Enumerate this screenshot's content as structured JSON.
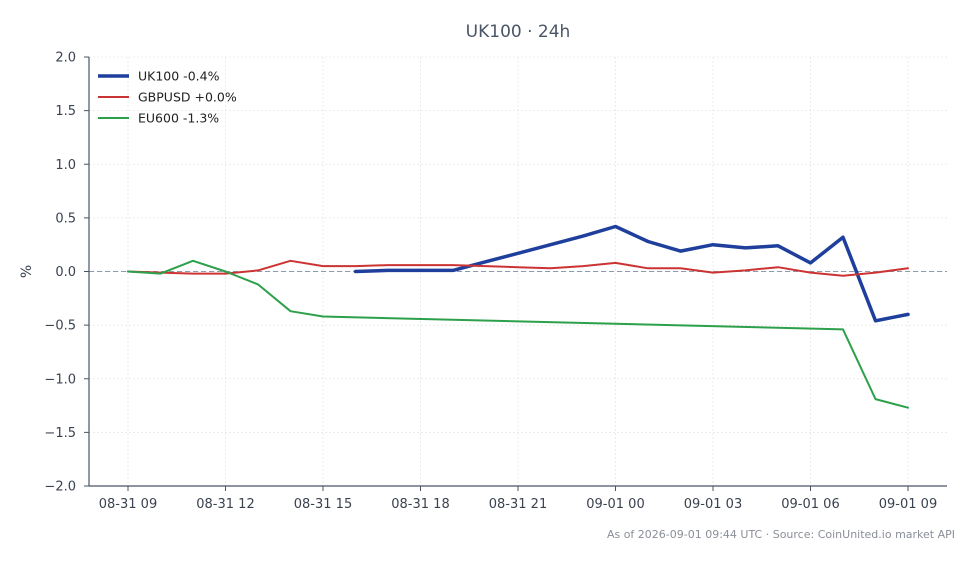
{
  "chart_data": {
    "type": "line",
    "title": "UK100 · 24h",
    "ylabel": "%",
    "xlabel": "",
    "ylim": [
      -2.0,
      2.0
    ],
    "yticks": [
      "2.0",
      "1.5",
      "1.0",
      "0.5",
      "0.0",
      "−0.5",
      "−1.0",
      "−1.5",
      "−2.0"
    ],
    "ytick_values": [
      2.0,
      1.5,
      1.0,
      0.5,
      0.0,
      -0.5,
      -1.0,
      -1.5,
      -2.0
    ],
    "xticks": [
      "08-31 09",
      "08-31 12",
      "08-31 15",
      "08-31 18",
      "08-31 21",
      "09-01 00",
      "09-01 03",
      "09-01 06",
      "09-01 09"
    ],
    "xtick_hours": [
      0,
      3,
      6,
      9,
      12,
      15,
      18,
      21,
      24
    ],
    "x_range_hours": [
      -1.2,
      25.2
    ],
    "grid": true,
    "zero_line": true,
    "legend_position": "top-left",
    "series": [
      {
        "name": "UK100 -0.4%",
        "color": "#1f3f9c",
        "hours": [
          7,
          8,
          9,
          10,
          11,
          12,
          13,
          14,
          15,
          16,
          17,
          18,
          19,
          20,
          21,
          22,
          23,
          24
        ],
        "values": [
          0.0,
          0.01,
          0.01,
          0.01,
          0.09,
          0.17,
          0.25,
          0.33,
          0.42,
          0.28,
          0.19,
          0.25,
          0.22,
          0.24,
          0.08,
          0.32,
          -0.46,
          -0.4
        ]
      },
      {
        "name": "GBPUSD +0.0%",
        "color": "#cc3333",
        "hours": [
          0,
          1,
          2,
          3,
          4,
          5,
          6,
          7,
          8,
          9,
          10,
          11,
          12,
          13,
          14,
          15,
          16,
          17,
          18,
          19,
          20,
          21,
          22,
          23,
          24
        ],
        "values": [
          0.0,
          -0.01,
          -0.02,
          -0.02,
          0.01,
          0.1,
          0.05,
          0.05,
          0.06,
          0.06,
          0.06,
          0.05,
          0.04,
          0.03,
          0.05,
          0.08,
          0.03,
          0.03,
          -0.01,
          0.01,
          0.04,
          -0.01,
          -0.04,
          -0.01,
          0.03
        ]
      },
      {
        "name": "EU600 -1.3%",
        "color": "#2ca04a",
        "hours": [
          0,
          1,
          2,
          3,
          4,
          5,
          6,
          22,
          23,
          24
        ],
        "values": [
          0.0,
          -0.02,
          0.1,
          0.0,
          -0.12,
          -0.37,
          -0.42,
          -0.54,
          -1.19,
          -1.27
        ]
      }
    ]
  },
  "footer": {
    "text": "As of 2026-09-01 09:44 UTC · Source: CoinUnited.io market API"
  }
}
